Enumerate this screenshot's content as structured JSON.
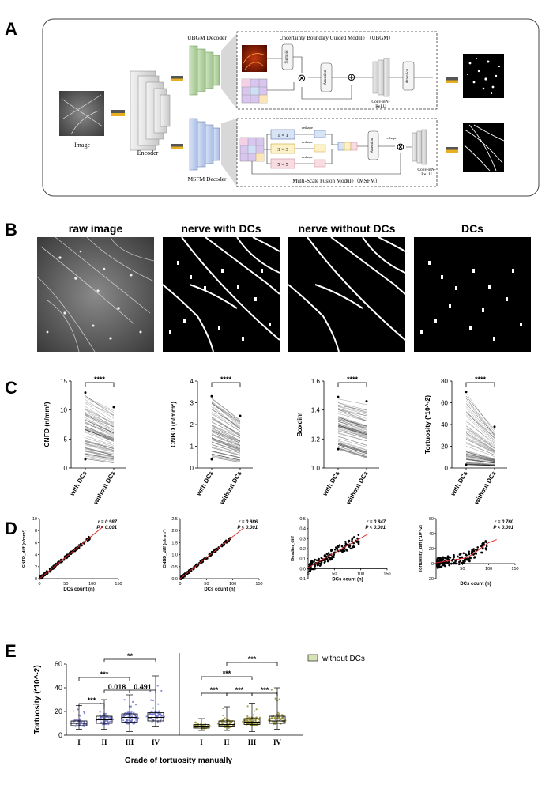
{
  "panels": {
    "a": "A",
    "b": "B",
    "c": "C",
    "d": "D",
    "e": "E"
  },
  "panel_a": {
    "image_label": "Image",
    "encoder_label": "Encoder",
    "ubgm_decoder": "UBGM Decoder",
    "msfm_decoder": "MSFM Decoder",
    "ubgm_title": "Uncertainty Boundary Guided  Module （UBGM）",
    "msfm_title": "Multi-Scale Fusion Module（MSFM）",
    "sigmoid": "Sigmoid",
    "attention": "Attention",
    "conv_bn_relu_1": "Conv-BN-",
    "conv_bn_relu_2": "ReLU",
    "k1": "1 × 1",
    "k3": "3 × 3",
    "k5": "5 × 5",
    "reshape": "reshape",
    "otimes": "⊗",
    "oplus": "⊕"
  },
  "panel_b": {
    "titles": [
      "raw image",
      "nerve with DCs",
      "nerve without DCs",
      "DCs"
    ]
  },
  "panel_c": {
    "significance": "****",
    "xticks": [
      "with DCs",
      "without DCs"
    ],
    "plots": [
      {
        "ylabel": "CNFD (n/mm²)",
        "ylim": [
          0,
          15
        ],
        "yticks": [
          "0",
          "5",
          "10",
          "15"
        ]
      },
      {
        "ylabel": "CNBD (n/mm²)",
        "ylim": [
          0,
          4
        ],
        "yticks": [
          "0",
          "1",
          "2",
          "3",
          "4"
        ]
      },
      {
        "ylabel": "Boxdim",
        "ylim": [
          1.0,
          1.6
        ],
        "yticks": [
          "1.0",
          "1.2",
          "1.4",
          "1.6"
        ]
      },
      {
        "ylabel": "Tortuosity (*10^-2)",
        "ylim": [
          0,
          80
        ],
        "yticks": [
          "0",
          "20",
          "40",
          "60",
          "80"
        ]
      }
    ]
  },
  "panel_d": {
    "xlabel": "DCs count (n)",
    "plots": [
      {
        "ylabel": "CNFD_diff (n/mm²)",
        "r": "r = 0.987",
        "p": "P < 0.001",
        "xticks": [
          "0",
          "50",
          "100",
          "150"
        ],
        "yticks": [
          "0",
          "2",
          "4",
          "6",
          "8",
          "10"
        ]
      },
      {
        "ylabel": "CNBD_diff (n/mm²)",
        "r": "r = 0.986",
        "p": "P < 0.001",
        "xticks": [
          "0",
          "50",
          "100",
          "150"
        ],
        "yticks": [
          "0.0",
          "0.5",
          "1.0",
          "1.5",
          "2.0",
          "2.5"
        ]
      },
      {
        "ylabel": "Boxdim_diff",
        "r": "r = 0.847",
        "p": "P < 0.001",
        "xticks": [
          "0",
          "50",
          "100",
          "150"
        ],
        "yticks": [
          "-0.1",
          "0.0",
          "0.1",
          "0.2",
          "0.3",
          "0.4",
          "0.5"
        ]
      },
      {
        "ylabel": "Tortuosity_diff (*10^-2)",
        "r": "r = 0.760",
        "p": "P < 0.001",
        "xticks": [
          "50",
          "100",
          "150"
        ],
        "yticks": [
          "-20",
          "0",
          "20",
          "40",
          "60"
        ]
      }
    ]
  },
  "panel_e": {
    "ylabel": "Tortuosity (*10^-2)",
    "xlabel": "Grade of tortuosity manually",
    "yticks": [
      "0",
      "20",
      "40",
      "60"
    ],
    "grades": [
      "I",
      "II",
      "III",
      "IV"
    ],
    "legend": "without DCs",
    "left_brackets": [
      "***",
      "***",
      "**",
      "0.018",
      "0.491"
    ],
    "right_brackets": [
      "***",
      "***",
      "***",
      "***",
      "***"
    ]
  },
  "chart_data": [
    {
      "type": "box",
      "title": "",
      "ylabel": "Tortuosity (*10^-2)",
      "ylim": [
        0,
        60
      ],
      "categories": [
        "I",
        "II",
        "III",
        "IV"
      ],
      "series": [
        {
          "color": "#6f74c8",
          "median": [
            10,
            13,
            15,
            15
          ],
          "q1": [
            8,
            10,
            11,
            12
          ],
          "q3": [
            12,
            16,
            18,
            19
          ],
          "min": [
            5,
            5,
            3,
            7
          ],
          "max": [
            25,
            30,
            34,
            50
          ]
        },
        {
          "name": "without DCs",
          "color": "#8e8b2c",
          "median": [
            7,
            9,
            11,
            12
          ],
          "q1": [
            6,
            7,
            9,
            10
          ],
          "q3": [
            9,
            12,
            14,
            16
          ],
          "min": [
            4,
            4,
            3,
            5
          ],
          "max": [
            14,
            24,
            27,
            40
          ]
        }
      ]
    },
    {
      "type": "scatter",
      "xlabel": "DCs count (n)",
      "ylabel": "CNFD_diff (n/mm²)",
      "xlim": [
        0,
        150
      ],
      "ylim": [
        0,
        10
      ],
      "fit": [
        [
          0,
          0
        ],
        [
          120,
          8.6
        ]
      ],
      "r": 0.987
    },
    {
      "type": "scatter",
      "xlabel": "DCs count (n)",
      "ylabel": "CNBD_diff (n/mm²)",
      "xlim": [
        0,
        150
      ],
      "ylim": [
        0,
        2.5
      ],
      "fit": [
        [
          0,
          0
        ],
        [
          120,
          2.1
        ]
      ],
      "r": 0.986
    },
    {
      "type": "scatter",
      "xlabel": "DCs count (n)",
      "ylabel": "Boxdim_diff",
      "xlim": [
        0,
        150
      ],
      "ylim": [
        -0.1,
        0.5
      ],
      "fit": [
        [
          0,
          0.01
        ],
        [
          115,
          0.35
        ]
      ],
      "r": 0.847
    },
    {
      "type": "scatter",
      "xlabel": "DCs count (n)",
      "ylabel": "Tortuosity_diff (*10^-2)",
      "xlim": [
        0,
        150
      ],
      "ylim": [
        -20,
        60
      ],
      "fit": [
        [
          0,
          1
        ],
        [
          60,
          8
        ],
        [
          100,
          28
        ],
        [
          115,
          32
        ]
      ],
      "r": 0.76
    }
  ]
}
